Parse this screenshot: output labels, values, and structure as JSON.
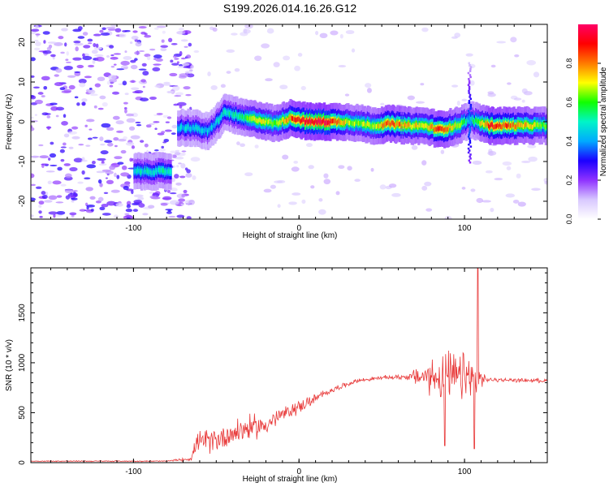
{
  "title": "S199.2026.014.16.26.G12",
  "chart_data": [
    {
      "type": "heatmap",
      "xlabel": "Height of straight line (km)",
      "ylabel": "Frequency (Hz)",
      "xlim": [
        -162,
        150
      ],
      "ylim": [
        -24.5,
        24.5
      ],
      "xticks": [
        -100,
        0,
        100
      ],
      "yticks": [
        -20,
        -10,
        0,
        10,
        20
      ],
      "colorbar": {
        "label": "Normalized spectral amplitude",
        "range": [
          0.0,
          1.0
        ],
        "ticks": [
          0.0,
          0.2,
          0.4,
          0.6,
          0.8
        ],
        "tick_labels": [
          "0.0",
          "0.2",
          "0.4",
          "0.6",
          "0.8"
        ],
        "colors": [
          "#ffffff",
          "#d8c8ff",
          "#8f33ff",
          "#1b00ff",
          "#00aaff",
          "#00f5c8",
          "#10ff00",
          "#ffff00",
          "#ff7a00",
          "#ff0000",
          "#ff0066"
        ]
      },
      "ridge": [
        {
          "x": -100,
          "freq": -12.5,
          "amp": 0.4
        },
        {
          "x": -78,
          "freq": -12.5,
          "amp": 0.45
        },
        {
          "x": -75,
          "freq": -1.5,
          "amp": 0.35
        },
        {
          "x": -65,
          "freq": -1.5,
          "amp": 0.4
        },
        {
          "x": -55,
          "freq": -2.5,
          "amp": 0.38
        },
        {
          "x": -45,
          "freq": 2.5,
          "amp": 0.42
        },
        {
          "x": -35,
          "freq": 1.0,
          "amp": 0.5
        },
        {
          "x": -25,
          "freq": 0.5,
          "amp": 0.65
        },
        {
          "x": -15,
          "freq": -0.5,
          "amp": 0.55
        },
        {
          "x": -5,
          "freq": 1.0,
          "amp": 0.78
        },
        {
          "x": 5,
          "freq": 0.0,
          "amp": 0.88
        },
        {
          "x": 15,
          "freq": 0.0,
          "amp": 0.92
        },
        {
          "x": 30,
          "freq": 0.0,
          "amp": 0.6
        },
        {
          "x": 45,
          "freq": -1.0,
          "amp": 0.62
        },
        {
          "x": 55,
          "freq": -0.5,
          "amp": 0.8
        },
        {
          "x": 65,
          "freq": -1.0,
          "amp": 0.7
        },
        {
          "x": 75,
          "freq": -1.0,
          "amp": 0.62
        },
        {
          "x": 85,
          "freq": -2.0,
          "amp": 0.82
        },
        {
          "x": 95,
          "freq": -1.0,
          "amp": 0.62
        },
        {
          "x": 103,
          "freq": 0.5,
          "amp": 0.4
        },
        {
          "x": 115,
          "freq": -1.0,
          "amp": 0.85
        },
        {
          "x": 130,
          "freq": -1.0,
          "amp": 0.75
        },
        {
          "x": 150,
          "freq": -1.0,
          "amp": 0.55
        }
      ],
      "noise_region": {
        "x_from": -162,
        "x_to": -75,
        "amp_max": 0.25
      }
    },
    {
      "type": "line",
      "xlabel": "Height of straight line (km)",
      "ylabel": "SNR (10 * v/v)",
      "xlim": [
        -162,
        150
      ],
      "ylim": [
        0,
        1950
      ],
      "xticks": [
        -100,
        0,
        100
      ],
      "yticks": [
        0,
        500,
        1000,
        1500
      ],
      "color": "#e83a3a",
      "series": [
        {
          "name": "SNR",
          "profile": [
            {
              "x": -162,
              "y": 15,
              "spread": 10
            },
            {
              "x": -80,
              "y": 15,
              "spread": 10
            },
            {
              "x": -65,
              "y": 40,
              "spread": 40
            },
            {
              "x": -62,
              "y": 200,
              "spread": 200
            },
            {
              "x": -50,
              "y": 230,
              "spread": 260
            },
            {
              "x": -35,
              "y": 330,
              "spread": 280
            },
            {
              "x": -20,
              "y": 380,
              "spread": 220
            },
            {
              "x": -10,
              "y": 480,
              "spread": 150
            },
            {
              "x": 0,
              "y": 560,
              "spread": 140
            },
            {
              "x": 10,
              "y": 640,
              "spread": 100
            },
            {
              "x": 20,
              "y": 730,
              "spread": 60
            },
            {
              "x": 35,
              "y": 820,
              "spread": 40
            },
            {
              "x": 50,
              "y": 850,
              "spread": 40
            },
            {
              "x": 65,
              "y": 860,
              "spread": 60
            },
            {
              "x": 75,
              "y": 860,
              "spread": 260
            },
            {
              "x": 85,
              "y": 860,
              "spread": 520
            },
            {
              "x": 95,
              "y": 860,
              "spread": 450
            },
            {
              "x": 103,
              "y": 840,
              "spread": 600
            },
            {
              "x": 110,
              "y": 840,
              "spread": 200
            },
            {
              "x": 113,
              "y": 830,
              "spread": 40
            },
            {
              "x": 150,
              "y": 820,
              "spread": 40
            }
          ],
          "peak": {
            "x": 108,
            "y": 1950
          },
          "dips": [
            {
              "x": 88,
              "y": 170
            },
            {
              "x": 106,
              "y": 140
            }
          ]
        }
      ]
    }
  ]
}
